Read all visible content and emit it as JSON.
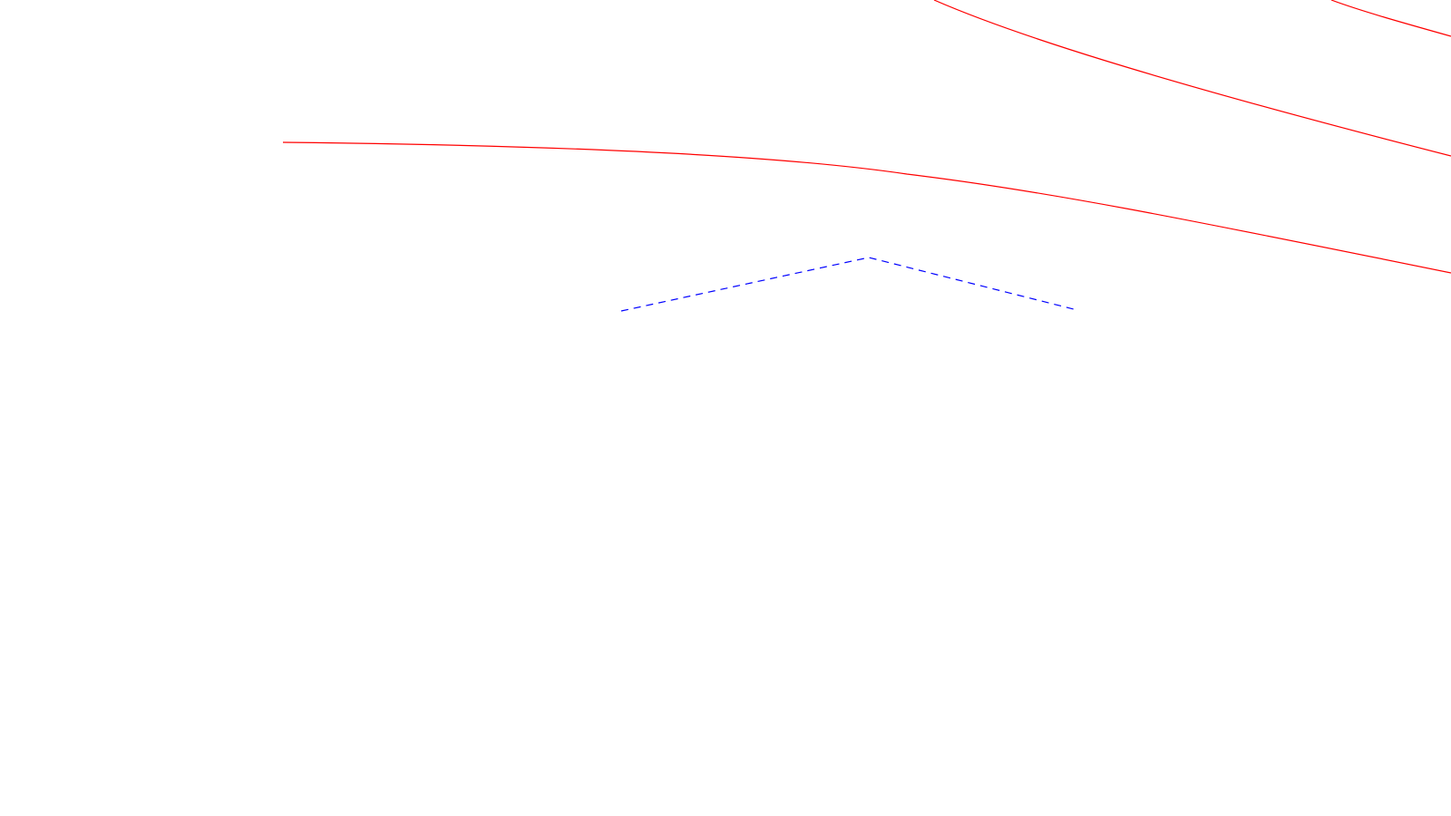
{
  "canvas": {
    "background": "#ffffff"
  },
  "strokes": {
    "curve_color": "#ff0000",
    "guide_color": "#0000ff"
  },
  "elements": [
    {
      "name": "red-curve-long",
      "kind": "curve",
      "style": "solid",
      "color": "#ff0000"
    },
    {
      "name": "red-curve-upper-right",
      "kind": "curve",
      "style": "solid",
      "color": "#ff0000"
    },
    {
      "name": "red-curve-corner",
      "kind": "curve",
      "style": "solid",
      "color": "#ff0000"
    },
    {
      "name": "blue-dashed-chevron",
      "kind": "polyline",
      "style": "dashed",
      "color": "#0000ff"
    }
  ]
}
